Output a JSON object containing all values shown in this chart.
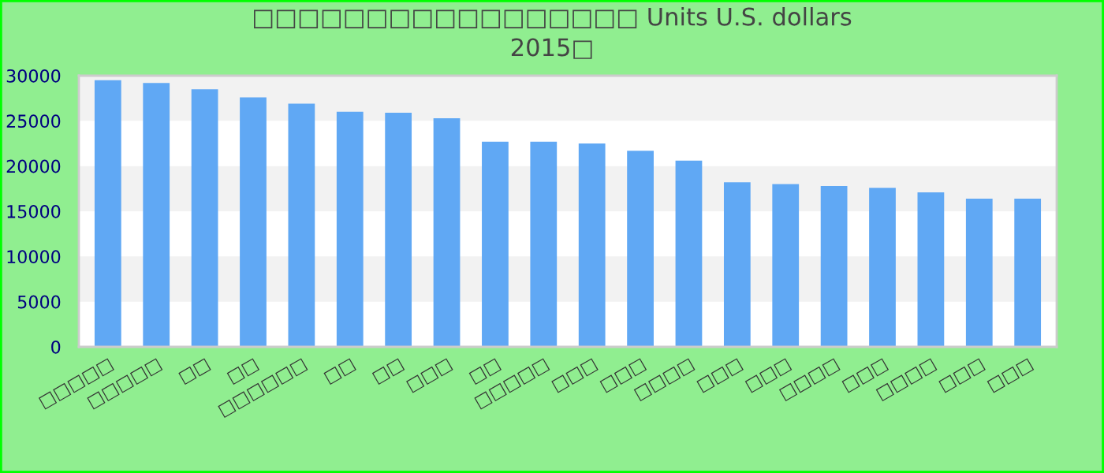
{
  "chart_data": {
    "type": "bar",
    "title": "□□□□□□□□□□□□□□□□□ Units U.S. dollars\n2015□",
    "categories": [
      "□□□□□",
      "□□□□□",
      "□□",
      "□□",
      "□□□□□□",
      "□□",
      "□□",
      "□□□",
      "□□",
      "□□□□□",
      "□□□",
      "□□□",
      "□□□□",
      "□□□",
      "□□□",
      "□□□□",
      "□□□",
      "□□□□",
      "□□□",
      "□□□"
    ],
    "values": [
      29500,
      29200,
      28500,
      27600,
      26900,
      26000,
      25900,
      25300,
      22700,
      22700,
      22500,
      21700,
      20600,
      18200,
      18000,
      17800,
      17600,
      17100,
      16400,
      16400
    ],
    "color": "#60a8f4",
    "ylim": [
      0,
      30000
    ],
    "yticks": [
      0,
      5000,
      10000,
      15000,
      20000,
      25000,
      30000
    ],
    "bands": [
      {
        "axis": "y",
        "from": 25000,
        "to": 30000,
        "color": "#f2f2f2"
      },
      {
        "axis": "y",
        "from": 15000,
        "to": 20000,
        "color": "#f2f2f2"
      },
      {
        "axis": "y",
        "from": 5000,
        "to": 10000,
        "color": "#f2f2f2"
      }
    ]
  }
}
